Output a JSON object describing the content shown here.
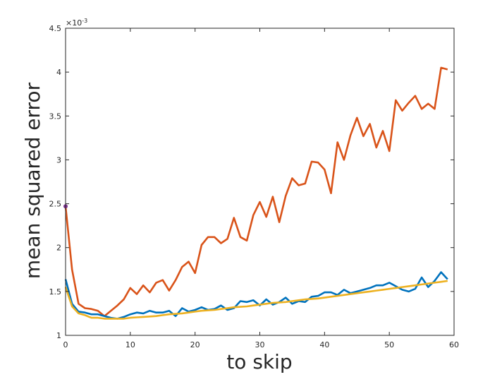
{
  "chart_data": {
    "type": "line",
    "title": "",
    "xlabel": "to skip",
    "ylabel": "mean squared error",
    "xlim": [
      0,
      60
    ],
    "ylim": [
      1,
      4.5
    ],
    "y_multiplier_label": "×10",
    "y_multiplier_exponent": "-3",
    "x_ticks": [
      0,
      10,
      20,
      30,
      40,
      50,
      60
    ],
    "y_ticks": [
      1,
      1.5,
      2,
      2.5,
      3,
      3.5,
      4,
      4.5
    ],
    "grid": false,
    "legend": "none",
    "series": [
      {
        "color": "#d95319",
        "x": [
          0,
          1,
          2,
          3,
          4,
          5,
          6,
          7,
          8,
          9,
          10,
          11,
          12,
          13,
          14,
          15,
          16,
          17,
          18,
          19,
          20,
          21,
          22,
          23,
          24,
          25,
          26,
          27,
          28,
          29,
          30,
          31,
          32,
          33,
          34,
          35,
          36,
          37,
          38,
          39,
          40,
          41,
          42,
          43,
          44,
          45,
          46,
          47,
          48,
          49,
          50,
          51,
          52,
          53,
          54,
          55,
          56,
          57,
          58,
          59
        ],
        "y": [
          2.47,
          1.75,
          1.36,
          1.31,
          1.3,
          1.28,
          1.22,
          1.28,
          1.34,
          1.41,
          1.54,
          1.47,
          1.57,
          1.49,
          1.6,
          1.63,
          1.51,
          1.63,
          1.78,
          1.84,
          1.71,
          2.03,
          2.12,
          2.12,
          2.05,
          2.1,
          2.34,
          2.12,
          2.08,
          2.37,
          2.52,
          2.35,
          2.58,
          2.29,
          2.59,
          2.79,
          2.71,
          2.73,
          2.98,
          2.97,
          2.89,
          2.62,
          3.2,
          3.0,
          3.28,
          3.48,
          3.27,
          3.41,
          3.14,
          3.33,
          3.1,
          3.68,
          3.56,
          3.65,
          3.73,
          3.58,
          3.64,
          3.58,
          4.05,
          4.03
        ]
      },
      {
        "color": "#0072bd",
        "x": [
          0,
          1,
          2,
          3,
          4,
          5,
          6,
          7,
          8,
          9,
          10,
          11,
          12,
          13,
          14,
          15,
          16,
          17,
          18,
          19,
          20,
          21,
          22,
          23,
          24,
          25,
          26,
          27,
          28,
          29,
          30,
          31,
          32,
          33,
          34,
          35,
          36,
          37,
          38,
          39,
          40,
          41,
          42,
          43,
          44,
          45,
          46,
          47,
          48,
          49,
          50,
          51,
          52,
          53,
          54,
          55,
          56,
          57,
          58,
          59
        ],
        "y": [
          1.64,
          1.36,
          1.27,
          1.26,
          1.24,
          1.24,
          1.22,
          1.2,
          1.19,
          1.21,
          1.24,
          1.26,
          1.25,
          1.28,
          1.26,
          1.26,
          1.28,
          1.22,
          1.31,
          1.27,
          1.29,
          1.32,
          1.29,
          1.3,
          1.34,
          1.29,
          1.31,
          1.39,
          1.38,
          1.4,
          1.34,
          1.41,
          1.35,
          1.38,
          1.43,
          1.36,
          1.39,
          1.38,
          1.44,
          1.45,
          1.49,
          1.49,
          1.46,
          1.52,
          1.48,
          1.5,
          1.52,
          1.54,
          1.57,
          1.57,
          1.6,
          1.56,
          1.52,
          1.5,
          1.53,
          1.66,
          1.55,
          1.62,
          1.72,
          1.64
        ]
      },
      {
        "color": "#edb120",
        "x": [
          0,
          1,
          2,
          3,
          4,
          5,
          6,
          7,
          8,
          9,
          10,
          11,
          12,
          13,
          14,
          15,
          16,
          17,
          18,
          19,
          20,
          21,
          22,
          23,
          24,
          25,
          26,
          27,
          28,
          29,
          30,
          31,
          32,
          33,
          34,
          35,
          36,
          37,
          38,
          39,
          40,
          41,
          42,
          43,
          44,
          45,
          46,
          47,
          48,
          49,
          50,
          51,
          52,
          53,
          54,
          55,
          56,
          57,
          58,
          59
        ],
        "y": [
          1.55,
          1.33,
          1.25,
          1.23,
          1.2,
          1.2,
          1.19,
          1.19,
          1.19,
          1.19,
          1.2,
          1.205,
          1.21,
          1.215,
          1.22,
          1.23,
          1.24,
          1.245,
          1.25,
          1.26,
          1.27,
          1.28,
          1.285,
          1.29,
          1.3,
          1.31,
          1.32,
          1.325,
          1.33,
          1.34,
          1.35,
          1.36,
          1.37,
          1.375,
          1.38,
          1.39,
          1.4,
          1.41,
          1.415,
          1.42,
          1.43,
          1.44,
          1.45,
          1.46,
          1.47,
          1.48,
          1.49,
          1.5,
          1.51,
          1.52,
          1.53,
          1.54,
          1.55,
          1.56,
          1.57,
          1.58,
          1.59,
          1.6,
          1.61,
          1.62
        ]
      }
    ],
    "markers": [
      {
        "x": 0,
        "y": 2.47,
        "color": "#7e2f8e"
      }
    ]
  }
}
